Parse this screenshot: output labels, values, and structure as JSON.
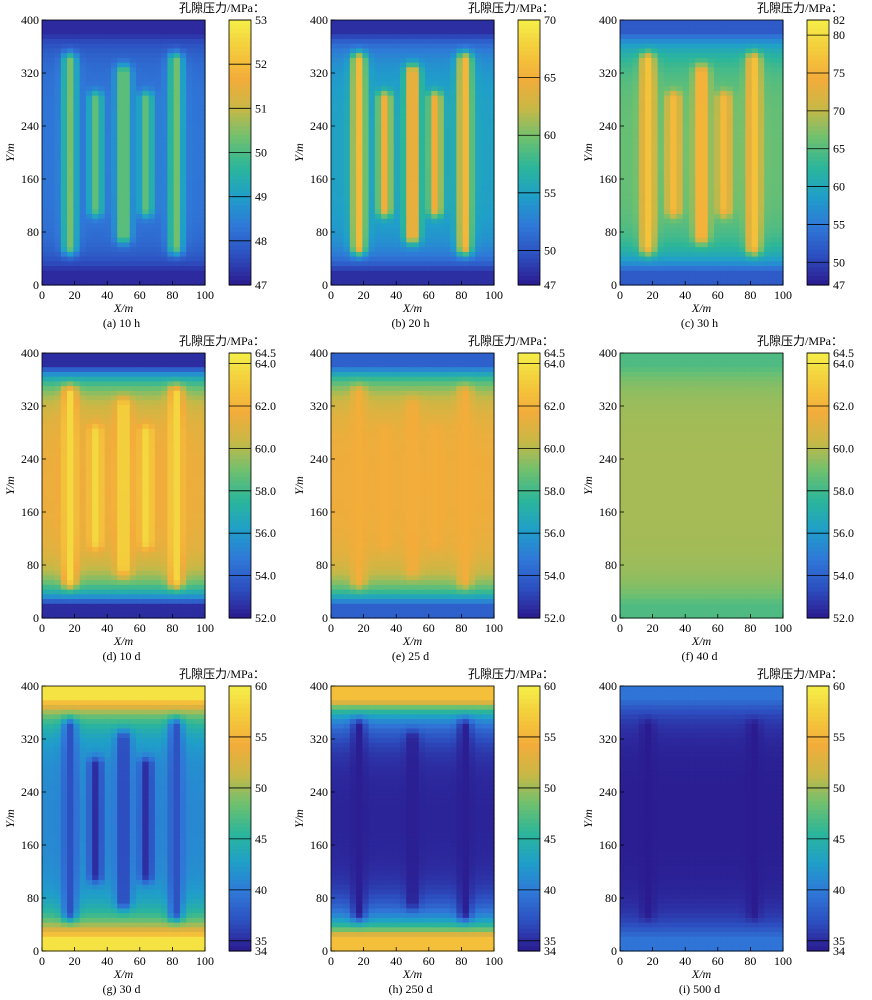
{
  "chart_data": [
    {
      "type": "heatmap",
      "caption": "(a) 10 h",
      "xlabel": "X/m",
      "ylabel": "Y/m",
      "colorbar_title": "孔隙压力/MPa：",
      "xlim": [
        0,
        100
      ],
      "ylim": [
        0,
        400
      ],
      "x_ticks": [
        "0",
        "20",
        "40",
        "60",
        "80",
        "100"
      ],
      "y_ticks": [
        "0",
        "80",
        "160",
        "240",
        "320",
        "400"
      ],
      "colorbar_ticks": [
        "47",
        "48",
        "49",
        "50",
        "51",
        "52",
        "53"
      ],
      "colorbar_range": [
        47,
        53
      ],
      "field": {
        "boundary": 47.2,
        "plateau": 48.3,
        "fractures": [
          {
            "x": 17,
            "y": [
              58,
              338
            ],
            "value": 50.4
          },
          {
            "x": 33,
            "y": [
              115,
              280
            ],
            "value": 50.2
          },
          {
            "x": 50,
            "y": [
              75,
              320
            ],
            "value": 50.5
          },
          {
            "x": 64,
            "y": [
              115,
              280
            ],
            "value": 50.2
          },
          {
            "x": 82,
            "y": [
              58,
              338
            ],
            "value": 50.4
          }
        ]
      }
    },
    {
      "type": "heatmap",
      "caption": "(b) 20 h",
      "xlabel": "X/m",
      "ylabel": "Y/m",
      "colorbar_title": "孔隙压力/MPa：",
      "xlim": [
        0,
        100
      ],
      "ylim": [
        0,
        400
      ],
      "x_ticks": [
        "0",
        "20",
        "40",
        "60",
        "80",
        "100"
      ],
      "y_ticks": [
        "0",
        "80",
        "160",
        "240",
        "320",
        "400"
      ],
      "colorbar_ticks": [
        "47",
        "50",
        "55",
        "60",
        "65",
        "70"
      ],
      "colorbar_range": [
        47,
        70
      ],
      "field": {
        "boundary": 48,
        "plateau": 55,
        "fractures": [
          {
            "x": 17,
            "y": [
              58,
              338
            ],
            "value": 66
          },
          {
            "x": 33,
            "y": [
              115,
              280
            ],
            "value": 65
          },
          {
            "x": 50,
            "y": [
              75,
              320
            ],
            "value": 66
          },
          {
            "x": 64,
            "y": [
              115,
              280
            ],
            "value": 65
          },
          {
            "x": 82,
            "y": [
              58,
              338
            ],
            "value": 66
          }
        ]
      }
    },
    {
      "type": "heatmap",
      "caption": "(c) 30 h",
      "xlabel": "X/m",
      "ylabel": "Y/m",
      "colorbar_title": "孔隙压力/MPa：",
      "xlim": [
        0,
        100
      ],
      "ylim": [
        0,
        400
      ],
      "x_ticks": [
        "0",
        "20",
        "40",
        "60",
        "80",
        "100"
      ],
      "y_ticks": [
        "0",
        "80",
        "160",
        "240",
        "320",
        "400"
      ],
      "colorbar_ticks": [
        "47",
        "50",
        "55",
        "60",
        "65",
        "70",
        "75",
        "80",
        "82"
      ],
      "colorbar_range": [
        47,
        82
      ],
      "field": {
        "boundary": 52,
        "plateau": 66,
        "fractures": [
          {
            "x": 17,
            "y": [
              58,
              338
            ],
            "value": 77
          },
          {
            "x": 33,
            "y": [
              115,
              280
            ],
            "value": 76
          },
          {
            "x": 50,
            "y": [
              75,
              320
            ],
            "value": 77
          },
          {
            "x": 64,
            "y": [
              115,
              280
            ],
            "value": 76
          },
          {
            "x": 82,
            "y": [
              58,
              338
            ],
            "value": 77
          }
        ]
      }
    },
    {
      "type": "heatmap",
      "caption": "(d) 10 d",
      "xlabel": "X/m",
      "ylabel": "Y/m",
      "colorbar_title": "孔隙压力/MPa：",
      "xlim": [
        0,
        100
      ],
      "ylim": [
        0,
        400
      ],
      "x_ticks": [
        "0",
        "20",
        "40",
        "60",
        "80",
        "100"
      ],
      "y_ticks": [
        "0",
        "80",
        "160",
        "240",
        "320",
        "400"
      ],
      "colorbar_ticks": [
        "52.0",
        "54.0",
        "56.0",
        "58.0",
        "60.0",
        "62.0",
        "64.0",
        "64.5"
      ],
      "colorbar_range": [
        52,
        64.5
      ],
      "field": {
        "boundary": 52.5,
        "plateau": 61.5,
        "fractures": [
          {
            "x": 17,
            "y": [
              58,
              338
            ],
            "value": 63.6
          },
          {
            "x": 33,
            "y": [
              115,
              280
            ],
            "value": 63.6
          },
          {
            "x": 50,
            "y": [
              75,
              320
            ],
            "value": 63.6
          },
          {
            "x": 64,
            "y": [
              115,
              280
            ],
            "value": 63.6
          },
          {
            "x": 82,
            "y": [
              58,
              338
            ],
            "value": 63.6
          }
        ]
      }
    },
    {
      "type": "heatmap",
      "caption": "(e) 25 d",
      "xlabel": "X/m",
      "ylabel": "Y/m",
      "colorbar_title": "孔隙压力/MPa：",
      "xlim": [
        0,
        100
      ],
      "ylim": [
        0,
        400
      ],
      "x_ticks": [
        "0",
        "20",
        "40",
        "60",
        "80",
        "100"
      ],
      "y_ticks": [
        "0",
        "80",
        "160",
        "240",
        "320",
        "400"
      ],
      "colorbar_ticks": [
        "52.0",
        "54.0",
        "56.0",
        "58.0",
        "60.0",
        "62.0",
        "64.0",
        "64.5"
      ],
      "colorbar_range": [
        52,
        64.5
      ],
      "field": {
        "boundary": 54,
        "plateau": 61.6,
        "fractures": [
          {
            "x": 17,
            "y": [
              58,
              338
            ],
            "value": 61.8
          },
          {
            "x": 33,
            "y": [
              115,
              280
            ],
            "value": 61.8
          },
          {
            "x": 50,
            "y": [
              75,
              320
            ],
            "value": 61.8
          },
          {
            "x": 64,
            "y": [
              115,
              280
            ],
            "value": 61.8
          },
          {
            "x": 82,
            "y": [
              58,
              338
            ],
            "value": 61.8
          }
        ]
      }
    },
    {
      "type": "heatmap",
      "caption": "(f) 40 d",
      "xlabel": "X/m",
      "ylabel": "Y/m",
      "colorbar_title": "孔隙压力/MPa：",
      "xlim": [
        0,
        100
      ],
      "ylim": [
        0,
        400
      ],
      "x_ticks": [
        "0",
        "20",
        "40",
        "60",
        "80",
        "100"
      ],
      "y_ticks": [
        "0",
        "80",
        "160",
        "240",
        "320",
        "400"
      ],
      "colorbar_ticks": [
        "52.0",
        "54.0",
        "56.0",
        "58.0",
        "60.0",
        "62.0",
        "64.0",
        "64.5"
      ],
      "colorbar_range": [
        52,
        64.5
      ],
      "field": {
        "boundary": 58.3,
        "plateau": 59.8,
        "fractures": []
      }
    },
    {
      "type": "heatmap",
      "caption": "(g) 30 d",
      "xlabel": "X/m",
      "ylabel": "Y/m",
      "colorbar_title": "孔隙压力/MPa：",
      "xlim": [
        0,
        100
      ],
      "ylim": [
        0,
        400
      ],
      "x_ticks": [
        "0",
        "20",
        "40",
        "60",
        "80",
        "100"
      ],
      "y_ticks": [
        "0",
        "80",
        "160",
        "240",
        "320",
        "400"
      ],
      "colorbar_ticks": [
        "34",
        "35",
        "40",
        "45",
        "50",
        "55",
        "60"
      ],
      "colorbar_range": [
        34,
        60
      ],
      "field": {
        "boundary": 59,
        "plateau": 41,
        "fractures": [
          {
            "x": 17,
            "y": [
              58,
              338
            ],
            "value": 37
          },
          {
            "x": 33,
            "y": [
              115,
              280
            ],
            "value": 35
          },
          {
            "x": 50,
            "y": [
              75,
              320
            ],
            "value": 36
          },
          {
            "x": 64,
            "y": [
              115,
              280
            ],
            "value": 35
          },
          {
            "x": 82,
            "y": [
              58,
              338
            ],
            "value": 37
          }
        ]
      }
    },
    {
      "type": "heatmap",
      "caption": "(h) 250 d",
      "xlabel": "X/m",
      "ylabel": "Y/m",
      "colorbar_title": "孔隙压力/MPa：",
      "xlim": [
        0,
        100
      ],
      "ylim": [
        0,
        400
      ],
      "x_ticks": [
        "0",
        "20",
        "40",
        "60",
        "80",
        "100"
      ],
      "y_ticks": [
        "0",
        "80",
        "160",
        "240",
        "320",
        "400"
      ],
      "colorbar_ticks": [
        "34",
        "35",
        "40",
        "45",
        "50",
        "55",
        "60"
      ],
      "colorbar_range": [
        34,
        60
      ],
      "field": {
        "boundary": 56,
        "plateau": 34.5,
        "fractures": [
          {
            "x": 17,
            "y": [
              58,
              338
            ],
            "value": 34.2
          },
          {
            "x": 50,
            "y": [
              75,
              320
            ],
            "value": 34.2
          },
          {
            "x": 82,
            "y": [
              58,
              338
            ],
            "value": 34.2
          }
        ]
      }
    },
    {
      "type": "heatmap",
      "caption": "(i) 500 d",
      "xlabel": "X/m",
      "ylabel": "Y/m",
      "colorbar_title": "孔隙压力/MPa：",
      "xlim": [
        0,
        100
      ],
      "ylim": [
        0,
        400
      ],
      "x_ticks": [
        "0",
        "20",
        "40",
        "60",
        "80",
        "100"
      ],
      "y_ticks": [
        "0",
        "80",
        "160",
        "240",
        "320",
        "400"
      ],
      "colorbar_ticks": [
        "34",
        "35",
        "40",
        "45",
        "50",
        "55",
        "60"
      ],
      "colorbar_range": [
        34,
        60
      ],
      "field": {
        "boundary": 39.5,
        "plateau": 34.2,
        "fractures": [
          {
            "x": 17,
            "y": [
              58,
              338
            ],
            "value": 34.05
          },
          {
            "x": 82,
            "y": [
              58,
              338
            ],
            "value": 34.05
          }
        ]
      }
    }
  ],
  "colormap": [
    "#2b1a8f",
    "#2d4fc0",
    "#2f78d8",
    "#1f9fc9",
    "#2bb69a",
    "#6fc06f",
    "#c9b846",
    "#f3ac3a",
    "#f4cc3c",
    "#f5ef48"
  ]
}
